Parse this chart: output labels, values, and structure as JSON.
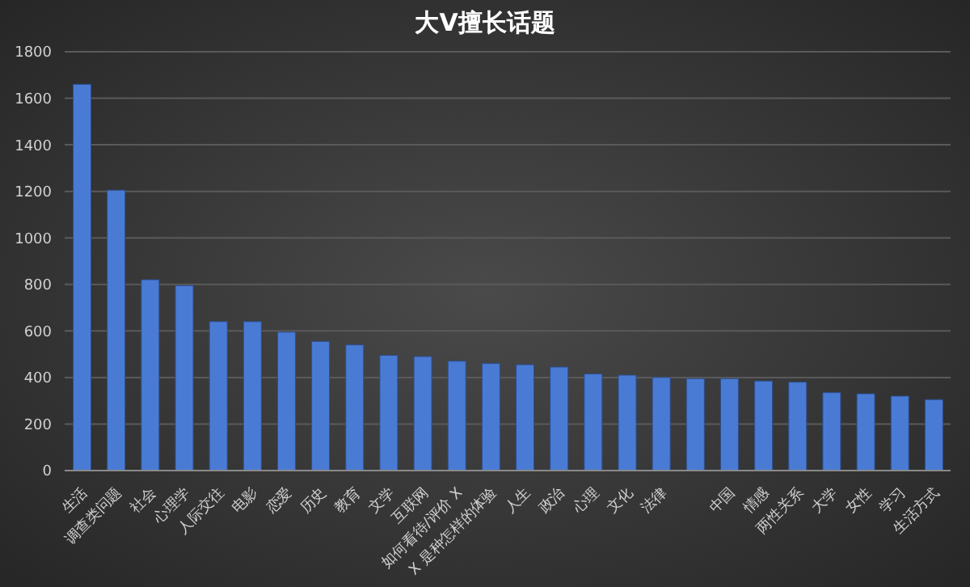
{
  "chart_data": {
    "type": "bar",
    "title": "大V擅长话题",
    "categories": [
      "生活",
      "调查类问题",
      "社会",
      "心理学",
      "人际交往",
      "电影",
      "恋爱",
      "历史",
      "教育",
      "文学",
      "互联网",
      "如何看待/评价 X",
      "X 是种怎样的体验",
      "人生",
      "政治",
      "心理",
      "文化",
      "法律",
      null,
      "中国",
      "情感",
      "两性关系",
      "大学",
      "女性",
      "学习",
      "生活方式"
    ],
    "values": [
      1660,
      1205,
      820,
      795,
      640,
      640,
      595,
      555,
      540,
      495,
      490,
      470,
      460,
      455,
      445,
      415,
      410,
      400,
      395,
      395,
      385,
      380,
      335,
      330,
      320,
      305
    ],
    "color": "#4a7bd4",
    "ylim": [
      0,
      1800
    ],
    "yticks": [
      0,
      200,
      400,
      600,
      800,
      1000,
      1200,
      1400,
      1600,
      1800
    ],
    "grid": "y",
    "legend": false
  }
}
